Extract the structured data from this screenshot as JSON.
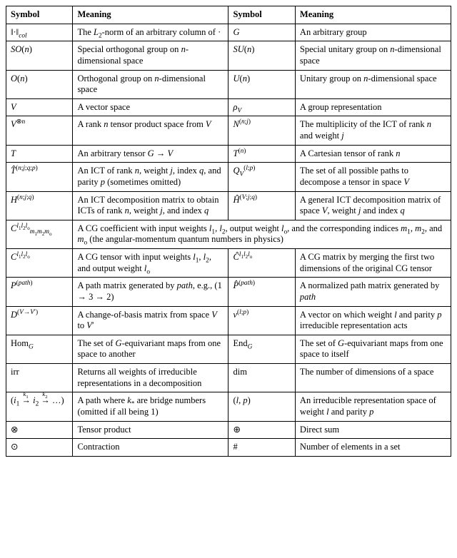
{
  "header": {
    "symbol": "Symbol",
    "meaning": "Meaning"
  },
  "rows": [
    {
      "s1": "‖·‖<sub><i>col</i></sub>",
      "m1": "The <i>L</i><sub>2</sub>-norm of an arbitrary column of ·",
      "s2": "<i>G</i>",
      "m2": "An arbitrary group"
    },
    {
      "s1": "<i>SO</i>(<i>n</i>)",
      "m1": "Special orthogonal group on <i>n</i>-dimensional space",
      "s2": "<i>SU</i>(<i>n</i>)",
      "m2": "Special unitary group on <i>n</i>-dimensional space"
    },
    {
      "s1": "<i>O</i>(<i>n</i>)",
      "m1": "Orthogonal group on <i>n</i>-dimensional space",
      "s2": "<i>U</i>(<i>n</i>)",
      "m2": "Unitary group on <i>n</i>-dimensional space"
    },
    {
      "s1": "<span class='cal'>V</span>",
      "m1": "A vector space",
      "s2": "<i>ρ</i><sub><span class='cal'>V</span></sub>",
      "m2": "A group representation"
    },
    {
      "s1": "<span class='cal'>V</span><sup>⊗<i>n</i></sup>",
      "m1": "A rank <i>n</i> tensor product space from <span class='cal'>V</span>",
      "s2": "<i>N</i><sup>(<i>n</i>;<i>j</i>)</sup>",
      "m2": "The multiplicity of the ICT of rank <i>n</i> and weight <i>j</i>"
    },
    {
      "s1": "<i>T</i>",
      "m1": "An arbitrary tensor <i>G</i> → <span class='cal'>V</span>",
      "s2": "<i>T</i><sup>(<i>n</i>)</sup>",
      "m2": "A Cartesian tensor of rank <i>n</i>"
    },
    {
      "s1": "<i>T̂</i><sup>(<i>n</i>;<i>j</i>;<i>q</i>;<i>p</i>)</sup>",
      "m1": "An ICT of rank <i>n</i>, weight <i>j</i>, index <i>q</i>, and parity <i>p</i> (sometimes omitted)",
      "s2": "<i>Q</i><sub><span class='cal'>V</span></sub><sup>(<i>l</i>;<i>p</i>)</sup>",
      "m2": "The set of all possible paths to decompose a tensor in space <span class='cal'>V</span>"
    },
    {
      "s1": "<i>H</i><sup>(<i>n</i>;<i>j</i>;<i>q</i>)</sup>",
      "m1": "An ICT decomposition matrix to obtain ICTs of rank <i>n</i>, weight <i>j</i>, and index <i>q</i>",
      "s2": "<i>Ĥ</i><sup>(<span class='cal'>V</span>;<i>j</i>;<i>q</i>)</sup>",
      "m2": "A general ICT decomposition matrix of space <span class='cal'>V</span>, weight <i>j</i> and index <i>q</i>"
    },
    {
      "s1": "<i>C</i><sup><i>l</i><sub>1</sub><i>l</i><sub>2</sub><i>l</i><sub>o</sub></sup><sub><i>m</i><sub>1</sub><i>m</i><sub>2</sub><i>m</i><sub>o</sub></sub>",
      "span": "A CG coefficient with input weights <i>l</i><sub>1</sub>, <i>l</i><sub>2</sub>, output weight <i>l</i><sub>o</sub>, and the corresponding indices <i>m</i><sub>1</sub>, <i>m</i><sub>2</sub>, and <i>m</i><sub>o</sub> (the angular-momentum quantum numbers in physics)"
    },
    {
      "s1": "<i>C</i><sup><i>l</i><sub>1</sub><i>l</i><sub>2</sub><i>l</i><sub>o</sub></sup>",
      "m1": "A CG tensor with input weights <i>l</i><sub>1</sub>, <i>l</i><sub>2</sub>, and output weight <i>l</i><sub>o</sub>",
      "s2": "<i>Ĉ</i><sup><i>l</i><sub>1</sub><i>l</i><sub>2</sub><i>l</i><sub>o</sub></sup>",
      "m2": "A CG matrix by merging the first two dimensions of the original CG tensor"
    },
    {
      "s1": "<i>P</i><sup>(<i>path</i>)</sup>",
      "m1": "A path matrix generated by <i>path</i>, e.g., (1 → 3 → 2)",
      "s2": "<i>P̂</i><sup>(<i>path</i>)</sup>",
      "m2": "A normalized path matrix generated by <i>path</i>"
    },
    {
      "s1": "<i>D</i><sup>(<span class='cal'>V</span>→<span class='cal'>V</span>′)</sup>",
      "m1": "A change-of-basis matrix from space <span class='cal'>V</span> to <span class='cal'>V</span>′",
      "s2": "<i>v</i><sup>(<i>l</i>;<i>p</i>)</sup>",
      "m2": "A vector on which weight <i>l</i> and parity <i>p</i> irreducible representation acts"
    },
    {
      "s1": "Hom<sub><i>G</i></sub>",
      "m1": "The set of <i>G</i>-equivariant maps from one space to another",
      "s2": "End<sub><i>G</i></sub>",
      "m2": "The set of <i>G</i>-equivariant maps from one space to itself"
    },
    {
      "s1": "irr",
      "m1": "Returns all weights of irreducible representations in a decomposition",
      "s2": "dim",
      "m2": "The number of dimensions of a space"
    },
    {
      "s1": "(<i>i</i><sub>1</sub> <span style='position:relative'><span style='position:absolute;font-size:70%;left:2px;top:-7px'><i>k</i><sub>1</sub></span>→</span> <i>i</i><sub>2</sub> <span style='position:relative'><span style='position:absolute;font-size:70%;left:2px;top:-7px'><i>k</i><sub>2</sub></span>→</span> …)",
      "m1": "A path where <i>k</i><sub>*</sub> are bridge numbers (omitted if all being 1)",
      "s2": "(<i>l</i>, <i>p</i>)",
      "m2": "An irreducible representation space of weight <i>l</i> and parity <i>p</i>"
    },
    {
      "s1": "⊗",
      "m1": "Tensor product",
      "s2": "⊕",
      "m2": "Direct sum"
    },
    {
      "s1": "⊙",
      "m1": "Contraction",
      "s2": "#",
      "m2": "Number of elements in a set"
    }
  ]
}
